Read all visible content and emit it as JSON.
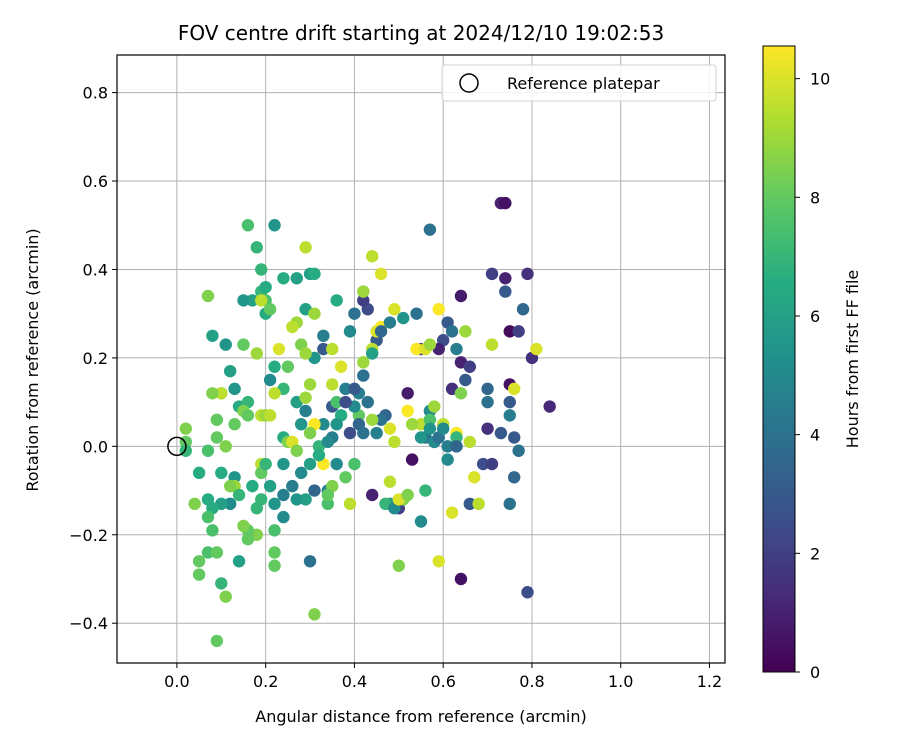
{
  "chart_data": {
    "type": "scatter",
    "title": "FOV centre drift starting at 2024/12/10 19:02:53",
    "xlabel": "Angular distance from reference (arcmin)",
    "ylabel": "Rotation from reference (arcmin)",
    "xlim": [
      -0.135,
      1.235
    ],
    "ylim": [
      -0.49,
      0.885
    ],
    "xticks": [
      0.0,
      0.2,
      0.4,
      0.6,
      0.8,
      1.0,
      1.2
    ],
    "xtick_labels": [
      "0.0",
      "0.2",
      "0.4",
      "0.6",
      "0.8",
      "1.0",
      "1.2"
    ],
    "yticks": [
      -0.4,
      -0.2,
      0.0,
      0.2,
      0.4,
      0.6,
      0.8
    ],
    "ytick_labels": [
      "−0.4",
      "−0.2",
      "0.0",
      "0.2",
      "0.4",
      "0.6",
      "0.8"
    ],
    "grid": true,
    "legend": {
      "placement": "top-right",
      "entries": [
        "Reference platepar"
      ]
    },
    "reference_point": {
      "x": 0.0,
      "y": 0.0,
      "label": "Reference platepar"
    },
    "colorbar": {
      "label": "Hours from first FF file",
      "range": [
        0,
        10.55
      ],
      "ticks": [
        0,
        2,
        4,
        6,
        8,
        10
      ],
      "tick_labels": [
        "0",
        "2",
        "4",
        "6",
        "8",
        "10"
      ],
      "colormap": "viridis",
      "colors": [
        "#440154",
        "#472c7a",
        "#3b518b",
        "#2c718e",
        "#21908d",
        "#27ad81",
        "#5cc863",
        "#aadc32",
        "#fde725"
      ]
    },
    "points": [
      [
        0.73,
        0.55,
        1.0
      ],
      [
        0.74,
        0.55,
        0.5
      ],
      [
        0.57,
        0.49,
        4.0
      ],
      [
        0.64,
        0.34,
        0.8
      ],
      [
        0.71,
        0.39,
        2.0
      ],
      [
        0.74,
        0.38,
        1.0
      ],
      [
        0.79,
        0.39,
        1.5
      ],
      [
        0.74,
        0.35,
        3.0
      ],
      [
        0.78,
        0.31,
        3.5
      ],
      [
        0.75,
        0.26,
        0.3
      ],
      [
        0.77,
        0.26,
        2.0
      ],
      [
        0.8,
        0.2,
        1.5
      ],
      [
        0.84,
        0.09,
        1.2
      ],
      [
        0.75,
        0.14,
        0.5
      ],
      [
        0.75,
        0.1,
        3.0
      ],
      [
        0.75,
        0.07,
        4.5
      ],
      [
        0.7,
        0.13,
        3.5
      ],
      [
        0.7,
        0.1,
        4.0
      ],
      [
        0.73,
        0.03,
        3.0
      ],
      [
        0.76,
        0.02,
        3.0
      ],
      [
        0.77,
        -0.01,
        4.0
      ],
      [
        0.7,
        0.04,
        1.5
      ],
      [
        0.69,
        -0.04,
        2.5
      ],
      [
        0.71,
        -0.04,
        2.0
      ],
      [
        0.76,
        -0.07,
        3.5
      ],
      [
        0.66,
        -0.13,
        3.0
      ],
      [
        0.64,
        -0.3,
        0.5
      ],
      [
        0.79,
        -0.33,
        2.5
      ],
      [
        0.75,
        -0.13,
        4.0
      ],
      [
        0.64,
        0.19,
        1.0
      ],
      [
        0.66,
        0.18,
        2.0
      ],
      [
        0.65,
        0.15,
        3.0
      ],
      [
        0.62,
        0.13,
        1.5
      ],
      [
        0.63,
        0.22,
        4.5
      ],
      [
        0.61,
        0.28,
        3.0
      ],
      [
        0.6,
        0.24,
        2.5
      ],
      [
        0.59,
        0.22,
        1.0
      ],
      [
        0.62,
        0.26,
        4.0
      ],
      [
        0.57,
        0.08,
        5.0
      ],
      [
        0.56,
        0.02,
        4.0
      ],
      [
        0.58,
        0.01,
        3.5
      ],
      [
        0.61,
        -0.03,
        5.0
      ],
      [
        0.55,
        -0.17,
        5.0
      ],
      [
        0.55,
        0.22,
        2.0
      ],
      [
        0.52,
        0.12,
        0.8
      ],
      [
        0.53,
        -0.03,
        0.5
      ],
      [
        0.5,
        -0.14,
        2.0
      ],
      [
        0.47,
        0.07,
        3.5
      ],
      [
        0.46,
        0.06,
        4.0
      ],
      [
        0.44,
        -0.11,
        1.0
      ],
      [
        0.45,
        0.24,
        3.0
      ],
      [
        0.43,
        0.31,
        2.5
      ],
      [
        0.42,
        0.33,
        2.0
      ],
      [
        0.4,
        0.3,
        4.0
      ],
      [
        0.39,
        0.26,
        5.0
      ],
      [
        0.36,
        0.33,
        6.5
      ],
      [
        0.33,
        0.25,
        4.5
      ],
      [
        0.33,
        0.22,
        3.0
      ],
      [
        0.31,
        0.2,
        5.5
      ],
      [
        0.29,
        0.31,
        6.0
      ],
      [
        0.3,
        0.39,
        6.0
      ],
      [
        0.31,
        0.39,
        6.5
      ],
      [
        0.27,
        0.38,
        6.0
      ],
      [
        0.22,
        0.5,
        5.5
      ],
      [
        0.24,
        0.38,
        6.5
      ],
      [
        0.19,
        0.35,
        7.0
      ],
      [
        0.2,
        0.33,
        7.5
      ],
      [
        0.17,
        0.33,
        6.0
      ],
      [
        0.15,
        0.33,
        5.5
      ],
      [
        0.2,
        0.3,
        6.5
      ],
      [
        0.08,
        0.25,
        6.0
      ],
      [
        0.11,
        0.23,
        5.5
      ],
      [
        0.12,
        0.17,
        6.0
      ],
      [
        0.1,
        0.12,
        7.5
      ],
      [
        0.13,
        0.13,
        5.5
      ],
      [
        0.14,
        0.09,
        6.5
      ],
      [
        0.16,
        0.1,
        7.0
      ],
      [
        0.21,
        0.15,
        5.0
      ],
      [
        0.22,
        0.18,
        6.5
      ],
      [
        0.24,
        0.13,
        7.0
      ],
      [
        0.27,
        0.1,
        6.0
      ],
      [
        0.29,
        0.08,
        4.5
      ],
      [
        0.28,
        0.05,
        5.5
      ],
      [
        0.33,
        0.05,
        5.0
      ],
      [
        0.35,
        0.09,
        3.0
      ],
      [
        0.37,
        0.07,
        6.5
      ],
      [
        0.39,
        0.03,
        2.5
      ],
      [
        0.41,
        0.12,
        4.5
      ],
      [
        0.43,
        0.1,
        4.0
      ],
      [
        0.36,
        -0.04,
        5.0
      ],
      [
        0.34,
        -0.1,
        4.5
      ],
      [
        0.31,
        -0.1,
        3.5
      ],
      [
        0.29,
        -0.12,
        6.0
      ],
      [
        0.27,
        -0.12,
        5.5
      ],
      [
        0.24,
        -0.11,
        4.5
      ],
      [
        0.22,
        -0.13,
        5.5
      ],
      [
        0.18,
        -0.14,
        7.0
      ],
      [
        0.18,
        -0.2,
        8.5
      ],
      [
        0.16,
        -0.19,
        8.0
      ],
      [
        0.15,
        -0.18,
        8.5
      ],
      [
        0.12,
        -0.13,
        5.0
      ],
      [
        0.1,
        -0.13,
        6.0
      ],
      [
        0.08,
        -0.14,
        6.5
      ],
      [
        0.07,
        -0.12,
        6.5
      ],
      [
        0.07,
        -0.16,
        7.5
      ],
      [
        0.08,
        -0.19,
        7.5
      ],
      [
        0.07,
        -0.24,
        7.5
      ],
      [
        0.09,
        -0.24,
        8.0
      ],
      [
        0.05,
        -0.26,
        8.0
      ],
      [
        0.05,
        -0.29,
        8.0
      ],
      [
        0.1,
        -0.31,
        7.0
      ],
      [
        0.11,
        -0.34,
        8.5
      ],
      [
        0.09,
        -0.44,
        8.0
      ],
      [
        0.14,
        -0.26,
        6.0
      ],
      [
        0.22,
        -0.24,
        8.0
      ],
      [
        0.22,
        -0.27,
        8.0
      ],
      [
        0.22,
        -0.19,
        7.5
      ],
      [
        0.3,
        -0.26,
        4.0
      ],
      [
        0.31,
        -0.38,
        8.5
      ],
      [
        0.34,
        -0.13,
        7.5
      ],
      [
        0.35,
        -0.09,
        8.5
      ],
      [
        0.38,
        -0.07,
        8.0
      ],
      [
        0.4,
        -0.04,
        7.5
      ],
      [
        0.39,
        -0.13,
        9.5
      ],
      [
        0.48,
        -0.08,
        9.5
      ],
      [
        0.48,
        -0.13,
        5.5
      ],
      [
        0.5,
        -0.27,
        8.5
      ],
      [
        0.51,
        -0.12,
        8.5
      ],
      [
        0.59,
        -0.26,
        10.0
      ],
      [
        0.62,
        -0.15,
        10.0
      ],
      [
        0.67,
        -0.07,
        10.0
      ],
      [
        0.68,
        -0.13,
        9.5
      ],
      [
        0.66,
        0.01,
        9.5
      ],
      [
        0.63,
        0.03,
        10.5
      ],
      [
        0.6,
        0.05,
        9.5
      ],
      [
        0.58,
        0.09,
        9.0
      ],
      [
        0.55,
        0.05,
        9.5
      ],
      [
        0.52,
        0.08,
        10.5
      ],
      [
        0.49,
        0.01,
        9.5
      ],
      [
        0.48,
        0.04,
        10.0
      ],
      [
        0.44,
        0.06,
        9.0
      ],
      [
        0.41,
        0.07,
        8.0
      ],
      [
        0.42,
        0.19,
        9.0
      ],
      [
        0.44,
        0.22,
        9.5
      ],
      [
        0.45,
        0.26,
        10.0
      ],
      [
        0.46,
        0.27,
        10.5
      ],
      [
        0.49,
        0.31,
        10.0
      ],
      [
        0.54,
        0.22,
        10.5
      ],
      [
        0.56,
        0.22,
        10.0
      ],
      [
        0.57,
        0.23,
        9.0
      ],
      [
        0.59,
        0.31,
        10.5
      ],
      [
        0.65,
        0.26,
        9.0
      ],
      [
        0.64,
        0.12,
        8.5
      ],
      [
        0.71,
        0.23,
        9.5
      ],
      [
        0.76,
        0.13,
        10.0
      ],
      [
        0.81,
        0.22,
        10.0
      ],
      [
        0.44,
        0.43,
        9.5
      ],
      [
        0.46,
        0.39,
        10.0
      ],
      [
        0.29,
        0.45,
        9.5
      ],
      [
        0.31,
        0.3,
        9.0
      ],
      [
        0.35,
        0.22,
        9.5
      ],
      [
        0.37,
        0.18,
        10.0
      ],
      [
        0.42,
        0.35,
        9.0
      ],
      [
        0.27,
        0.28,
        9.0
      ],
      [
        0.28,
        0.23,
        8.5
      ],
      [
        0.29,
        0.21,
        9.0
      ],
      [
        0.3,
        0.14,
        9.0
      ],
      [
        0.25,
        0.18,
        8.0
      ],
      [
        0.23,
        0.22,
        10.0
      ],
      [
        0.26,
        0.27,
        9.5
      ],
      [
        0.18,
        0.21,
        9.0
      ],
      [
        0.15,
        0.23,
        8.0
      ],
      [
        0.07,
        0.34,
        8.5
      ],
      [
        0.18,
        0.45,
        7.0
      ],
      [
        0.16,
        0.5,
        7.5
      ],
      [
        0.19,
        0.4,
        7.0
      ],
      [
        0.2,
        0.36,
        6.5
      ],
      [
        0.19,
        0.33,
        9.5
      ],
      [
        0.21,
        0.31,
        8.0
      ],
      [
        0.1,
        0.12,
        9.5
      ],
      [
        0.08,
        0.12,
        8.5
      ],
      [
        0.15,
        0.08,
        8.5
      ],
      [
        0.16,
        0.07,
        8.0
      ],
      [
        0.13,
        0.05,
        8.0
      ],
      [
        0.09,
        0.06,
        8.0
      ],
      [
        0.09,
        0.02,
        8.0
      ],
      [
        0.11,
        0.0,
        8.5
      ],
      [
        0.07,
        -0.01,
        7.5
      ],
      [
        0.05,
        -0.06,
        6.5
      ],
      [
        0.02,
        0.04,
        8.5
      ],
      [
        0.02,
        0.01,
        8.0
      ],
      [
        0.02,
        -0.01,
        7.0
      ],
      [
        0.04,
        -0.13,
        8.5
      ],
      [
        0.1,
        -0.06,
        6.5
      ],
      [
        0.13,
        -0.07,
        5.5
      ],
      [
        0.13,
        -0.09,
        9.0
      ],
      [
        0.16,
        -0.21,
        8.0
      ],
      [
        0.19,
        -0.04,
        9.5
      ],
      [
        0.19,
        -0.06,
        8.0
      ],
      [
        0.2,
        -0.04,
        7.0
      ],
      [
        0.19,
        0.07,
        9.5
      ],
      [
        0.2,
        0.07,
        9.0
      ],
      [
        0.21,
        0.07,
        9.5
      ],
      [
        0.22,
        0.12,
        9.5
      ],
      [
        0.24,
        0.02,
        6.5
      ],
      [
        0.25,
        0.01,
        8.5
      ],
      [
        0.24,
        -0.04,
        5.5
      ],
      [
        0.26,
        0.01,
        10.0
      ],
      [
        0.27,
        -0.01,
        8.5
      ],
      [
        0.29,
        0.11,
        9.0
      ],
      [
        0.31,
        0.05,
        10.5
      ],
      [
        0.3,
        0.03,
        8.5
      ],
      [
        0.32,
        0.0,
        7.0
      ],
      [
        0.33,
        -0.04,
        10.5
      ],
      [
        0.34,
        -0.11,
        8.0
      ],
      [
        0.36,
        0.1,
        7.5
      ],
      [
        0.35,
        0.14,
        9.5
      ],
      [
        0.38,
        0.13,
        4.5
      ],
      [
        0.4,
        0.09,
        5.0
      ],
      [
        0.41,
        0.05,
        3.5
      ],
      [
        0.42,
        0.03,
        4.0
      ],
      [
        0.45,
        0.03,
        4.5
      ],
      [
        0.47,
        -0.13,
        7.0
      ],
      [
        0.49,
        -0.14,
        5.0
      ],
      [
        0.5,
        -0.12,
        10.0
      ],
      [
        0.52,
        -0.11,
        8.5
      ],
      [
        0.53,
        0.05,
        9.0
      ],
      [
        0.55,
        0.02,
        5.5
      ],
      [
        0.56,
        -0.1,
        7.0
      ],
      [
        0.57,
        0.06,
        7.5
      ],
      [
        0.57,
        0.04,
        5.5
      ],
      [
        0.58,
        0.01,
        5.0
      ],
      [
        0.59,
        0.02,
        4.0
      ],
      [
        0.6,
        0.04,
        5.0
      ],
      [
        0.61,
        0.0,
        4.5
      ],
      [
        0.63,
        0.02,
        7.0
      ],
      [
        0.63,
        0.0,
        3.5
      ],
      [
        0.54,
        0.3,
        4.0
      ],
      [
        0.51,
        0.29,
        5.5
      ],
      [
        0.48,
        0.28,
        4.5
      ],
      [
        0.46,
        0.26,
        3.5
      ],
      [
        0.44,
        0.21,
        6.0
      ],
      [
        0.42,
        0.16,
        4.0
      ],
      [
        0.4,
        0.13,
        3.0
      ],
      [
        0.38,
        0.1,
        2.5
      ],
      [
        0.36,
        0.05,
        5.5
      ],
      [
        0.35,
        0.02,
        4.5
      ],
      [
        0.34,
        0.01,
        5.0
      ],
      [
        0.32,
        -0.02,
        6.5
      ],
      [
        0.3,
        -0.04,
        6.0
      ],
      [
        0.28,
        -0.06,
        5.0
      ],
      [
        0.26,
        -0.09,
        4.5
      ],
      [
        0.24,
        -0.16,
        5.0
      ],
      [
        0.21,
        -0.09,
        6.0
      ],
      [
        0.19,
        -0.12,
        7.0
      ],
      [
        0.17,
        -0.09,
        6.5
      ],
      [
        0.14,
        -0.11,
        7.0
      ],
      [
        0.12,
        -0.09,
        8.5
      ]
    ]
  }
}
